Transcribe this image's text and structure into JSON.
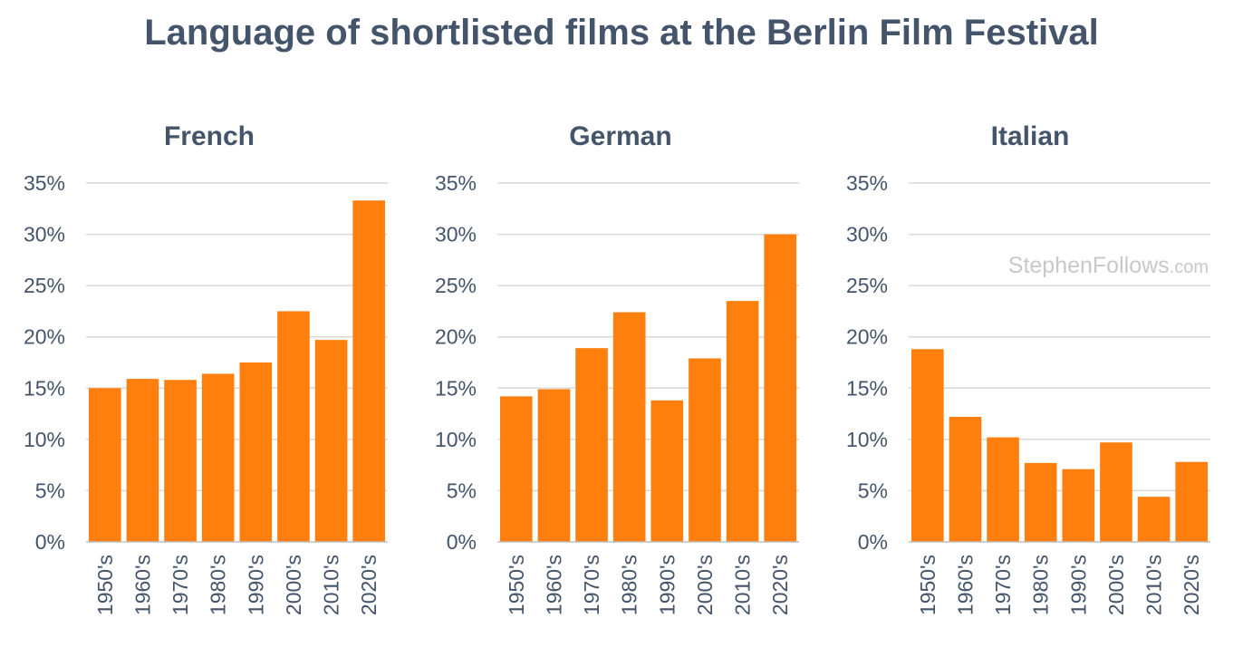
{
  "chart_data": {
    "type": "bar",
    "title": "Language of shortlisted films at the Berlin Film Festival",
    "y_ticks": [
      "0%",
      "5%",
      "10%",
      "15%",
      "20%",
      "25%",
      "30%",
      "35%"
    ],
    "ylim": [
      0,
      35
    ],
    "grid": true,
    "bar_color": "#ff7f0e",
    "panels": [
      {
        "title": "French",
        "categories": [
          "1950's",
          "1960's",
          "1970's",
          "1980's",
          "1990's",
          "2000's",
          "2010's",
          "2020's"
        ],
        "values": [
          15.0,
          15.9,
          15.8,
          16.4,
          17.5,
          22.5,
          19.7,
          33.3
        ]
      },
      {
        "title": "German",
        "categories": [
          "1950's",
          "1960's",
          "1970's",
          "1980's",
          "1990's",
          "2000's",
          "2010's",
          "2020's"
        ],
        "values": [
          14.2,
          14.9,
          18.9,
          22.4,
          13.8,
          17.9,
          23.5,
          30.0
        ]
      },
      {
        "title": "Italian",
        "categories": [
          "1950's",
          "1960's",
          "1970's",
          "1980's",
          "1990's",
          "2000's",
          "2010's",
          "2020's"
        ],
        "values": [
          18.8,
          12.2,
          10.2,
          7.7,
          7.1,
          9.7,
          4.4,
          7.8
        ]
      }
    ]
  },
  "watermark": {
    "main": "StephenFollows",
    "suffix": ".com"
  }
}
